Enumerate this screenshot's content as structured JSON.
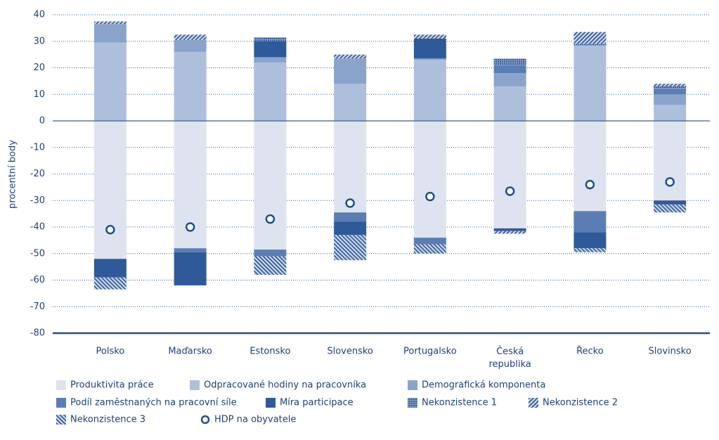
{
  "chart_data": {
    "type": "bar",
    "stacked": true,
    "y_label": "procentní body",
    "categories": [
      "Polsko",
      "Maďarsko",
      "Estonsko",
      "Slovensko",
      "Portugalsko",
      "Česká republika",
      "Řecko",
      "Slovinsko"
    ],
    "ylim": [
      -80,
      40
    ],
    "yticks": [
      40,
      30,
      20,
      10,
      0,
      -10,
      -20,
      -30,
      -40,
      -50,
      -60,
      -70,
      -80
    ],
    "grid": true,
    "series": [
      {
        "name": "Produktivita práce",
        "color": "#dde3ef",
        "values": [
          -52,
          -48,
          -48.5,
          -34.5,
          -44,
          -40.5,
          -34,
          -30
        ]
      },
      {
        "name": "Odpracované hodiny na pracovníka",
        "color": "#aebfdb",
        "values": [
          29.5,
          26,
          22,
          14,
          23,
          13,
          28.5,
          6
        ]
      },
      {
        "name": "Demografická komponenta",
        "color": "#8aa3cb",
        "values": [
          7,
          4.5,
          2,
          9.5,
          0.5,
          5,
          0,
          4
        ]
      },
      {
        "name": "Podíl zaměstnaných na pracovní síle",
        "color": "#5b7db5",
        "values": [
          0,
          -1.5,
          -2.5,
          -3.5,
          -2.5,
          3,
          -8,
          2
        ]
      },
      {
        "name": "Míra participace",
        "color": "#2e5a99",
        "values": [
          -7,
          -12.5,
          6,
          -5,
          7.5,
          -1,
          -6,
          -1.5
        ]
      },
      {
        "name": "Nekonzistence 1",
        "color": "#2e5a99",
        "hatch": "cross",
        "values": [
          0,
          0,
          1.5,
          0,
          0,
          2.5,
          0.5,
          1
        ]
      },
      {
        "name": "Nekonzistence 2",
        "color": "#3d659f",
        "hatch": "back",
        "values": [
          1,
          2,
          0,
          1.5,
          1.5,
          -1,
          4.5,
          1
        ]
      },
      {
        "name": "Nekonzistence 3",
        "color": "#3d659f",
        "hatch": "forward",
        "values": [
          -4.5,
          0,
          -7,
          -9.5,
          -3.5,
          0,
          -1.5,
          -3
        ]
      },
      {
        "name": "HDP na obyvatele",
        "type": "marker",
        "color": "#1f4e8c",
        "values": [
          -41,
          -40,
          -37,
          -31,
          -28.5,
          -26.5,
          -24,
          -23
        ]
      }
    ]
  }
}
